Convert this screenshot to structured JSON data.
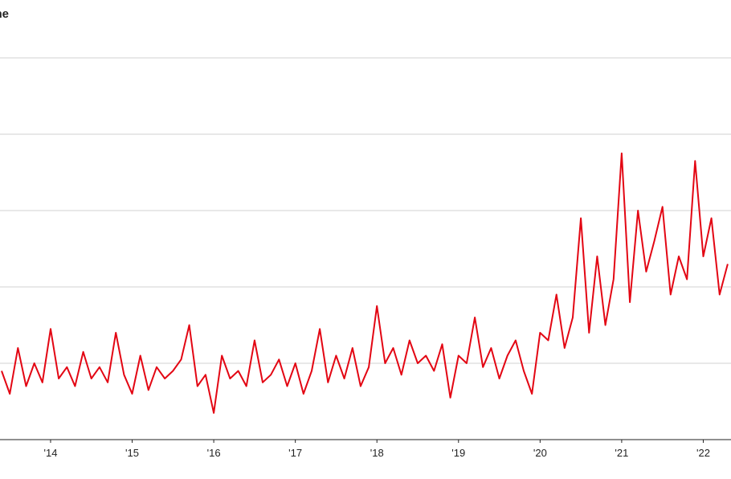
{
  "chart_data": {
    "type": "line",
    "title": "ne",
    "x": [
      2013.4,
      2013.5,
      2013.6,
      2013.7,
      2013.8,
      2013.9,
      2014.0,
      2014.1,
      2014.2,
      2014.3,
      2014.4,
      2014.5,
      2014.6,
      2014.7,
      2014.8,
      2014.9,
      2015.0,
      2015.1,
      2015.2,
      2015.3,
      2015.4,
      2015.5,
      2015.6,
      2015.7,
      2015.8,
      2015.9,
      2016.0,
      2016.1,
      2016.2,
      2016.3,
      2016.4,
      2016.5,
      2016.6,
      2016.7,
      2016.8,
      2016.9,
      2017.0,
      2017.1,
      2017.2,
      2017.3,
      2017.4,
      2017.5,
      2017.6,
      2017.7,
      2017.8,
      2017.9,
      2018.0,
      2018.1,
      2018.2,
      2018.3,
      2018.4,
      2018.5,
      2018.6,
      2018.7,
      2018.8,
      2018.9,
      2019.0,
      2019.1,
      2019.2,
      2019.3,
      2019.4,
      2019.5,
      2019.6,
      2019.7,
      2019.8,
      2019.9,
      2020.0,
      2020.1,
      2020.2,
      2020.3,
      2020.4,
      2020.5,
      2020.6,
      2020.7,
      2020.8,
      2020.9,
      2021.0,
      2021.1,
      2021.2,
      2021.3,
      2021.4,
      2021.5,
      2021.6,
      2021.7,
      2021.8,
      2021.9,
      2022.0,
      2022.1,
      2022.2,
      2022.3
    ],
    "series": [
      {
        "color": "#e30613",
        "values": [
          0.9,
          0.6,
          1.2,
          0.7,
          1.0,
          0.75,
          1.45,
          0.8,
          0.95,
          0.7,
          1.15,
          0.8,
          0.95,
          0.75,
          1.4,
          0.85,
          0.6,
          1.1,
          0.65,
          0.95,
          0.8,
          0.9,
          1.05,
          1.5,
          0.7,
          0.85,
          0.35,
          1.1,
          0.8,
          0.9,
          0.7,
          1.3,
          0.75,
          0.85,
          1.05,
          0.7,
          1.0,
          0.6,
          0.9,
          1.45,
          0.75,
          1.1,
          0.8,
          1.2,
          0.7,
          0.95,
          1.75,
          1.0,
          1.2,
          0.85,
          1.3,
          1.0,
          1.1,
          0.9,
          1.25,
          0.55,
          1.1,
          1.0,
          1.6,
          0.95,
          1.2,
          0.8,
          1.1,
          1.3,
          0.9,
          0.6,
          1.4,
          1.3,
          1.9,
          1.2,
          1.6,
          2.9,
          1.4,
          2.4,
          1.5,
          2.1,
          3.75,
          1.8,
          3.0,
          2.2,
          2.6,
          3.05,
          1.9,
          2.4,
          2.1,
          3.65,
          2.4,
          2.9,
          1.9,
          2.3
        ]
      }
    ],
    "xlim": [
      2013.38,
      2022.34
    ],
    "xticks": [
      {
        "value": 2014,
        "label": "'14"
      },
      {
        "value": 2015,
        "label": "'15"
      },
      {
        "value": 2016,
        "label": "'16"
      },
      {
        "value": 2017,
        "label": "'17"
      },
      {
        "value": 2018,
        "label": "'18"
      },
      {
        "value": 2019,
        "label": "'19"
      },
      {
        "value": 2020,
        "label": "'20"
      },
      {
        "value": 2021,
        "label": "'21"
      },
      {
        "value": 2022,
        "label": "'22"
      }
    ],
    "ylim": [
      0,
      5
    ],
    "yticks": [
      0,
      1,
      2,
      3,
      4,
      5
    ],
    "grid": true
  }
}
